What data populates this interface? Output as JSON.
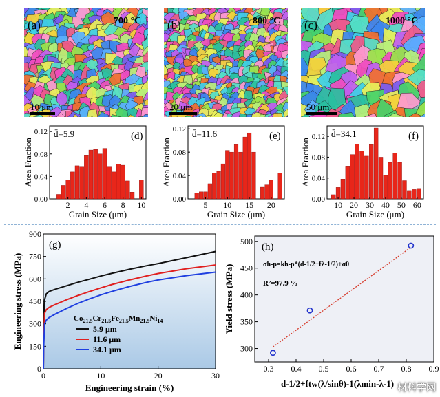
{
  "colors": {
    "bar": "#e8261a",
    "black_curve": "#111111",
    "red_curve": "#e02020",
    "blue_curve": "#1f3fe0",
    "fit_line": "#d63a2a",
    "marker": "#2233cc",
    "panel_g_bg_top": "#ffffff",
    "panel_g_bg_bottom": "#aac9e6",
    "panel_h_bg": "#eef0f6"
  },
  "ebsd": [
    {
      "label": "(a)",
      "temp": "700 °C",
      "scale": "10 μm"
    },
    {
      "label": "(b)",
      "temp": "800 °C",
      "scale": "20 μm"
    },
    {
      "label": "(c)",
      "temp": "1000 °C",
      "scale": "50 μm"
    }
  ],
  "chart_data": [
    {
      "type": "bar",
      "panel": "(d)",
      "mean_label": "d̄=5.9",
      "ylabel": "Area Fraction",
      "xlabel": "Grain Size (μm)",
      "xlim": [
        0,
        10.5
      ],
      "ylim": [
        0,
        0.13
      ],
      "xticks": [
        "2",
        "4",
        "6",
        "8",
        "10"
      ],
      "xtick_values": [
        2,
        4,
        6,
        8,
        10
      ],
      "yticks": [
        "0.00",
        "0.04",
        "0.08",
        "0.12"
      ],
      "ytick_values": [
        0,
        0.04,
        0.08,
        0.12
      ],
      "bin_width": 0.45,
      "x": [
        1.0,
        1.5,
        2.0,
        2.5,
        3.0,
        3.5,
        4.0,
        4.5,
        5.0,
        5.5,
        6.0,
        6.5,
        7.0,
        7.5,
        8.0,
        8.5,
        9.0,
        10.0
      ],
      "values": [
        0.008,
        0.024,
        0.034,
        0.048,
        0.059,
        0.058,
        0.077,
        0.087,
        0.088,
        0.08,
        0.09,
        0.058,
        0.048,
        0.062,
        0.06,
        0.032,
        0.012,
        0.034
      ]
    },
    {
      "type": "bar",
      "panel": "(e)",
      "mean_label": "d̄=11.6",
      "ylabel": "Area Fraction",
      "xlabel": "Grain Size (μm)",
      "xlim": [
        1,
        23
      ],
      "ylim": [
        0,
        0.125
      ],
      "xticks": [
        "5",
        "10",
        "15",
        "20"
      ],
      "xtick_values": [
        5,
        10,
        15,
        20
      ],
      "yticks": [
        "0.00",
        "0.04",
        "0.08",
        "0.12"
      ],
      "ytick_values": [
        0,
        0.04,
        0.08,
        0.12
      ],
      "bin_width": 0.9,
      "x": [
        3,
        4,
        5,
        6,
        7,
        8,
        9,
        10,
        11,
        12,
        13,
        14,
        15,
        16,
        18,
        19,
        20,
        22
      ],
      "values": [
        0.01,
        0.012,
        0.012,
        0.026,
        0.044,
        0.047,
        0.06,
        0.083,
        0.08,
        0.093,
        0.08,
        0.106,
        0.113,
        0.08,
        0.02,
        0.024,
        0.032,
        0.044
      ]
    },
    {
      "type": "bar",
      "panel": "(f)",
      "mean_label": "d̄=34.1",
      "ylabel": "Area Fraction",
      "xlabel": "Grain Size (μm)",
      "xlim": [
        3,
        64
      ],
      "ylim": [
        0,
        0.14
      ],
      "xticks": [
        "10",
        "20",
        "30",
        "40",
        "50",
        "60"
      ],
      "xtick_values": [
        10,
        20,
        30,
        40,
        50,
        60
      ],
      "yticks": [
        "0.00",
        "0.04",
        "0.08",
        "0.12"
      ],
      "ytick_values": [
        0,
        0.04,
        0.08,
        0.12
      ],
      "bin_width": 2.6,
      "x": [
        7,
        10,
        13,
        16,
        19,
        22,
        25,
        28,
        31,
        34,
        37,
        40,
        43,
        46,
        49,
        52,
        55,
        58,
        61
      ],
      "values": [
        0.008,
        0.022,
        0.038,
        0.063,
        0.085,
        0.105,
        0.092,
        0.082,
        0.104,
        0.136,
        0.08,
        0.045,
        0.07,
        0.088,
        0.07,
        0.035,
        0.016,
        0.018,
        0.02
      ]
    },
    {
      "type": "line",
      "panel": "(g)",
      "ylabel": "Engineering stress (MPa)",
      "xlabel": "Engineering strain (%)",
      "xlim": [
        0,
        30
      ],
      "ylim": [
        0,
        900
      ],
      "xticks": [
        "0",
        "10",
        "20",
        "30"
      ],
      "xtick_values": [
        0,
        10,
        20,
        30
      ],
      "yticks": [
        "0",
        "150",
        "300",
        "450",
        "600",
        "750",
        "900"
      ],
      "ytick_values": [
        0,
        150,
        300,
        450,
        600,
        750,
        900
      ],
      "legend_title": {
        "prefix": "Co",
        "parts": [
          [
            "21.5",
            "Cr"
          ],
          [
            "21.5",
            "Fe"
          ],
          [
            "21.5",
            "Mn"
          ],
          [
            "21.5",
            "Ni"
          ],
          [
            "14",
            ""
          ]
        ]
      },
      "series": [
        {
          "name": "5.9 μm",
          "color_key": "black_curve",
          "x": [
            0,
            0.05,
            0.2,
            0.5,
            1,
            2,
            4,
            6,
            8,
            10,
            12,
            15,
            18,
            20,
            25,
            30
          ],
          "y": [
            0,
            200,
            460,
            500,
            516,
            530,
            554,
            577,
            598,
            619,
            638,
            664,
            688,
            702,
            742,
            783
          ]
        },
        {
          "name": "11.6 μm",
          "color_key": "red_curve",
          "x": [
            0,
            0.05,
            0.2,
            0.5,
            1,
            2,
            4,
            6,
            8,
            10,
            12,
            15,
            18,
            20,
            25,
            30
          ],
          "y": [
            0,
            160,
            370,
            395,
            410,
            428,
            460,
            489,
            515,
            540,
            563,
            593,
            620,
            636,
            668,
            693
          ]
        },
        {
          "name": "34.1 μm",
          "color_key": "blue_curve",
          "x": [
            0,
            0.05,
            0.2,
            0.5,
            1,
            2,
            4,
            6,
            8,
            10,
            12,
            15,
            18,
            20,
            25,
            30
          ],
          "y": [
            0,
            140,
            300,
            325,
            342,
            364,
            402,
            436,
            466,
            493,
            517,
            549,
            577,
            593,
            622,
            645
          ]
        }
      ]
    },
    {
      "type": "scatter",
      "panel": "(h)",
      "ylabel": "Yield stress (MPa)",
      "xlabel": "d-1/2+ftw(λ/sinθ)-1(λmin-λ-1)",
      "xlim": [
        0.25,
        0.9
      ],
      "ylim": [
        275,
        510
      ],
      "xticks": [
        "0.3",
        "0.4",
        "0.5",
        "0.6",
        "0.7",
        "0.8",
        "0.9"
      ],
      "xtick_values": [
        0.3,
        0.4,
        0.5,
        0.6,
        0.7,
        0.8,
        0.9
      ],
      "yticks": [
        "300",
        "350",
        "400",
        "450",
        "500"
      ],
      "ytick_values": [
        300,
        350,
        400,
        450,
        500
      ],
      "points": {
        "x": [
          0.316,
          0.45,
          0.817
        ],
        "y": [
          292,
          371,
          492
        ]
      },
      "fit": {
        "x": [
          0.316,
          0.817
        ],
        "y": [
          303,
          489
        ]
      },
      "equation": "σh-p=kh-p*(d-1/2+fλ-1/2)+σ0",
      "r2": "R²=97.9 %"
    }
  ],
  "watermark": "材料学网"
}
